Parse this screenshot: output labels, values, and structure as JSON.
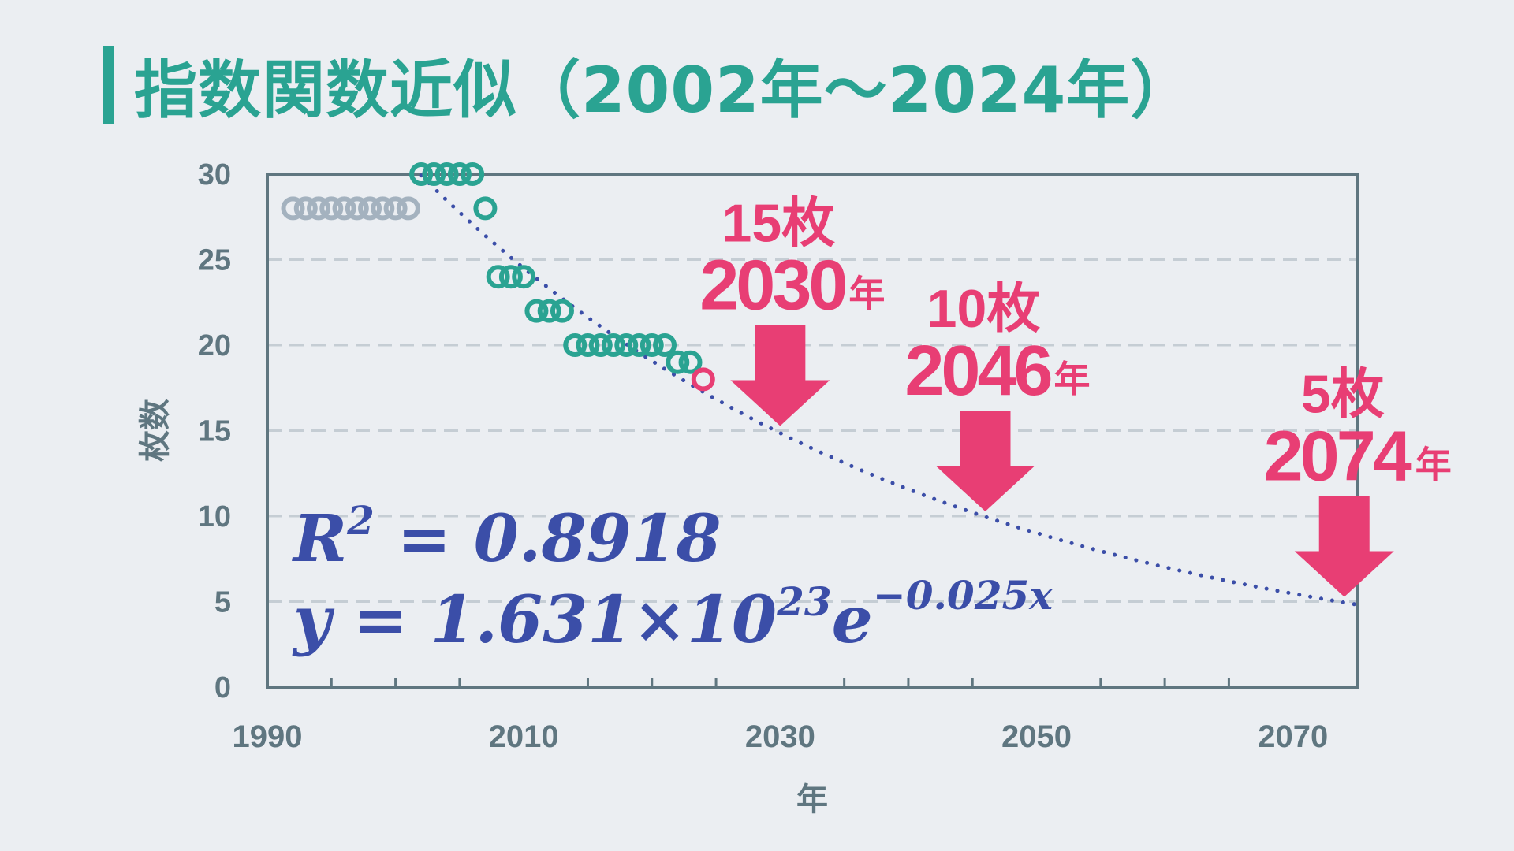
{
  "title": "指数関数近似（2002年〜2024年）",
  "chart_data": {
    "type": "scatter",
    "xlabel": "年",
    "ylabel": "枚数",
    "xlim": [
      1990,
      2075
    ],
    "ylim": [
      0,
      30
    ],
    "x_ticks": [
      1990,
      2010,
      2030,
      2050,
      2070
    ],
    "x_tick_labels": [
      "1990",
      "2010",
      "2030",
      "2050",
      "2070"
    ],
    "x_minor_ticks": [
      1995,
      2000,
      2005,
      2015,
      2020,
      2025,
      2035,
      2040,
      2045,
      2055,
      2060,
      2065
    ],
    "y_ticks": [
      0,
      5,
      10,
      15,
      20,
      25,
      30
    ],
    "y_tick_labels": [
      "0",
      "5",
      "10",
      "15",
      "20",
      "25",
      "30"
    ],
    "grid": "horizontal-dashed",
    "series": [
      {
        "name": "1992-2001",
        "color": "#a4b2bf",
        "marker": "open-circle",
        "x": [
          1992,
          1993,
          1994,
          1995,
          1996,
          1997,
          1998,
          1999,
          2000,
          2001
        ],
        "y": [
          28,
          28,
          28,
          28,
          28,
          28,
          28,
          28,
          28,
          28
        ]
      },
      {
        "name": "2002-2023",
        "color": "#2aa392",
        "marker": "open-circle",
        "x": [
          2002,
          2003,
          2004,
          2005,
          2006,
          2007,
          2008,
          2009,
          2010,
          2011,
          2012,
          2013,
          2014,
          2015,
          2016,
          2017,
          2018,
          2019,
          2020,
          2021,
          2022,
          2023
        ],
        "y": [
          30,
          30,
          30,
          30,
          30,
          28,
          24,
          24,
          24,
          22,
          22,
          22,
          20,
          20,
          20,
          20,
          20,
          20,
          20,
          20,
          19,
          19
        ]
      },
      {
        "name": "2024",
        "color": "#e83e74",
        "marker": "open-circle",
        "x": [
          2024
        ],
        "y": [
          18
        ]
      }
    ],
    "trendline": {
      "type": "exponential",
      "style": "dotted",
      "color": "#3b4ea8",
      "coef": 1.631e+23,
      "rate": -0.025,
      "x_start": 2002,
      "x_end": 2075
    },
    "equation": {
      "r_squared_label": "R² = 0.8918",
      "r_squared_value": 0.8918,
      "formula_label": "y = 1.631×10²³e⁻⁰·⁰²⁵ˣ"
    },
    "annotations": [
      {
        "count_label": "15枚",
        "year_number": "2030",
        "year_unit": "年",
        "x": 2030,
        "y": 15
      },
      {
        "count_label": "10枚",
        "year_number": "2046",
        "year_unit": "年",
        "x": 2046,
        "y": 10
      },
      {
        "count_label": "5枚",
        "year_number": "2074",
        "year_unit": "年",
        "x": 2074,
        "y": 5
      }
    ],
    "annotation_color": "#e83e74"
  }
}
